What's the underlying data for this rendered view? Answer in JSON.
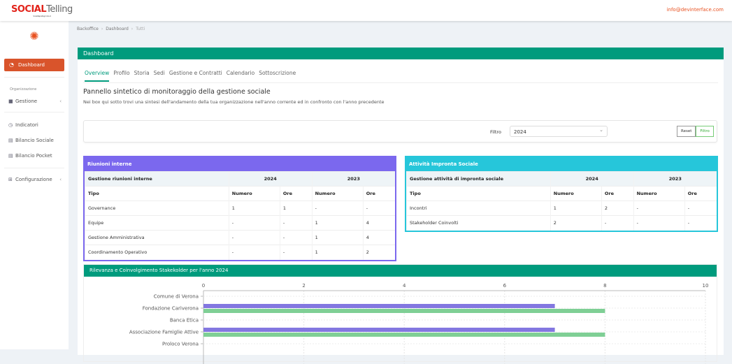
{
  "header": {
    "logo_social": "SOCIAL",
    "logo_telling": "Telling",
    "logo_tagline": "Social Reporting in Cloud",
    "email": "info@devinterface.com"
  },
  "sidebar": {
    "dashboard": "Dashboard",
    "section": "Organizzazione",
    "items": [
      {
        "label": "Gestione",
        "icon": "briefcase-icon"
      },
      {
        "label": "Indicatori",
        "icon": "gauge-icon"
      },
      {
        "label": "Bilancio Sociale",
        "icon": "document-icon"
      },
      {
        "label": "Bilancio Pocket",
        "icon": "document-icon"
      },
      {
        "label": "Configurazione",
        "icon": "table-icon"
      }
    ]
  },
  "breadcrumb": [
    "Backoffice",
    "Dashboard",
    "Tutti"
  ],
  "panel": {
    "title": "Dashboard",
    "tabs": [
      "Overview",
      "Profilo",
      "Storia",
      "Sedi",
      "Gestione e Contratti",
      "Calendario",
      "Sottoscrizione"
    ],
    "heading": "Pannello sintetico di monitoraggio della gestione sociale",
    "subheading": "Nei box qui sotto trovi una sintesi dell'andamento della tua organizzazione nell'anno corrente ed in confronto con l'anno precedente"
  },
  "filter": {
    "label": "Filtro",
    "value": "2024",
    "reset": "Reset",
    "apply": "Filtro"
  },
  "riunioni": {
    "title": "Riunioni interne",
    "group": "Gestione riunioni interne",
    "year1": "2024",
    "year2": "2023",
    "cols": [
      "Tipo",
      "Numero",
      "Ore",
      "Numero",
      "Ore"
    ],
    "rows": [
      [
        "Governance",
        "1",
        "1",
        "-",
        "-"
      ],
      [
        "Equipe",
        "-",
        "-",
        "1",
        "4"
      ],
      [
        "Gestione Amministrativa",
        "-",
        "-",
        "1",
        "4"
      ],
      [
        "Coordinamento Operativo",
        "-",
        "-",
        "1",
        "2"
      ]
    ],
    "color": "#7b68ee"
  },
  "impronta": {
    "title": "Attività Impronta Sociale",
    "group": "Gestione attività di impronta sociale",
    "year1": "2024",
    "year2": "2023",
    "cols": [
      "Tipo",
      "Numero",
      "Ore",
      "Numero",
      "Ore"
    ],
    "rows": [
      [
        "Incontri",
        "1",
        "2",
        "-",
        "-"
      ],
      [
        "Stakeholder Coinvolti",
        "2",
        "-",
        "-",
        "-"
      ]
    ],
    "color": "#26c6da"
  },
  "chart_data": {
    "type": "bar",
    "orientation": "horizontal",
    "title": "Rilevanza e Coinvolgimento Stakekolder per l'anno 2024",
    "categories": [
      "Comune di Verona",
      "Fondazione Cariverona",
      "Banca Etica",
      "Associazione Famiglie Attive",
      "Proloco Verona"
    ],
    "series": [
      {
        "values": [
          0,
          7,
          0,
          7,
          null
        ],
        "color": "#8377e0"
      },
      {
        "values": [
          0,
          8,
          0,
          8,
          null
        ],
        "color": "#7fcf95"
      }
    ],
    "xlim": [
      0,
      10
    ],
    "xticks": [
      0,
      2,
      4,
      6,
      8,
      10
    ],
    "grid": true
  }
}
